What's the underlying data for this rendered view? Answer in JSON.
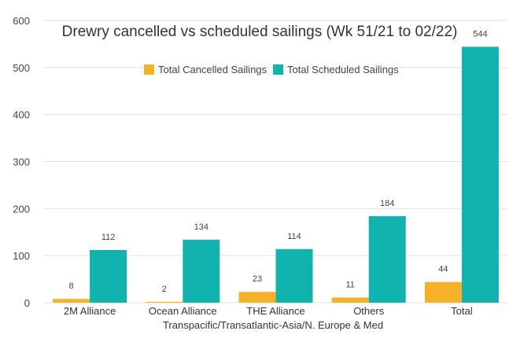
{
  "chart_data": {
    "type": "bar",
    "title": "Drewry cancelled vs scheduled sailings (Wk 51/21 to 02/22)",
    "xlabel": "Transpacific/Transatlantic-Asia/N. Europe & Med",
    "ylabel": "",
    "categories": [
      "2M Alliance",
      "Ocean Alliance",
      "THE Alliance",
      "Others",
      "Total"
    ],
    "series": [
      {
        "name": "Total Cancelled Sailings",
        "color": "#F6B12B",
        "values": [
          8,
          2,
          23,
          11,
          44
        ]
      },
      {
        "name": "Total Scheduled Sailings",
        "color": "#10B3AE",
        "values": [
          112,
          134,
          114,
          184,
          544
        ]
      }
    ],
    "ylim": [
      0,
      600
    ],
    "yticks": [
      0,
      100,
      200,
      300,
      400,
      500,
      600
    ],
    "grid": true,
    "legend": "top-center"
  }
}
